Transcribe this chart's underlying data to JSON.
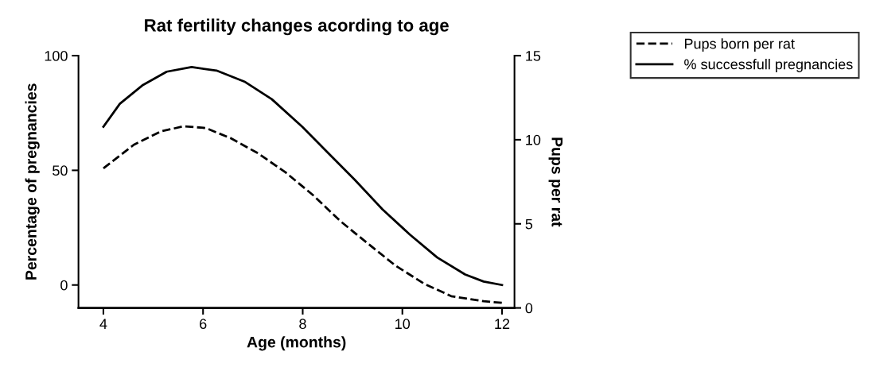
{
  "chart_data": {
    "type": "line",
    "title": "Rat fertility changes acording to age",
    "xlabel": "Age (months)",
    "ylabel": "Percentage of pregnancies",
    "y2label": "Pups per rat",
    "xlim": [
      3.5,
      12.25
    ],
    "xticks": [
      4,
      6,
      8,
      10,
      12
    ],
    "ylim": [
      -10,
      100
    ],
    "yticks": [
      0,
      50,
      100
    ],
    "y2lim": [
      0,
      15
    ],
    "y2ticks": [
      0,
      5,
      10,
      15
    ],
    "grid": false,
    "legend": "top right",
    "marker": "none",
    "series": [
      {
        "name": "Pups born per rat",
        "color": "#000000",
        "axis": "y2",
        "line_style": "dashed",
        "x": [
          4,
          4.61,
          5.16,
          5.61,
          6.05,
          6.55,
          7.1,
          7.66,
          8.21,
          8.76,
          9.32,
          9.87,
          10.43,
          10.98,
          11.63,
          12
        ],
        "values": [
          8.3,
          9.7,
          10.5,
          10.8,
          10.7,
          10.1,
          9.2,
          8.05,
          6.7,
          5.15,
          3.8,
          2.5,
          1.45,
          0.7,
          0.4,
          0.3
        ]
      },
      {
        "name": "% successfull pregnancies",
        "color": "#000000",
        "axis": "y",
        "line_style": "solid",
        "x": [
          4,
          4.33,
          4.78,
          5.27,
          5.77,
          6.27,
          6.83,
          7.38,
          7.99,
          8.49,
          9.04,
          9.6,
          10.15,
          10.7,
          11.26,
          11.63,
          12
        ],
        "values": [
          69,
          79,
          87,
          93,
          95,
          93.5,
          88.7,
          81,
          69,
          58,
          46,
          33,
          22,
          12,
          4.6,
          1.5,
          0
        ]
      }
    ]
  }
}
